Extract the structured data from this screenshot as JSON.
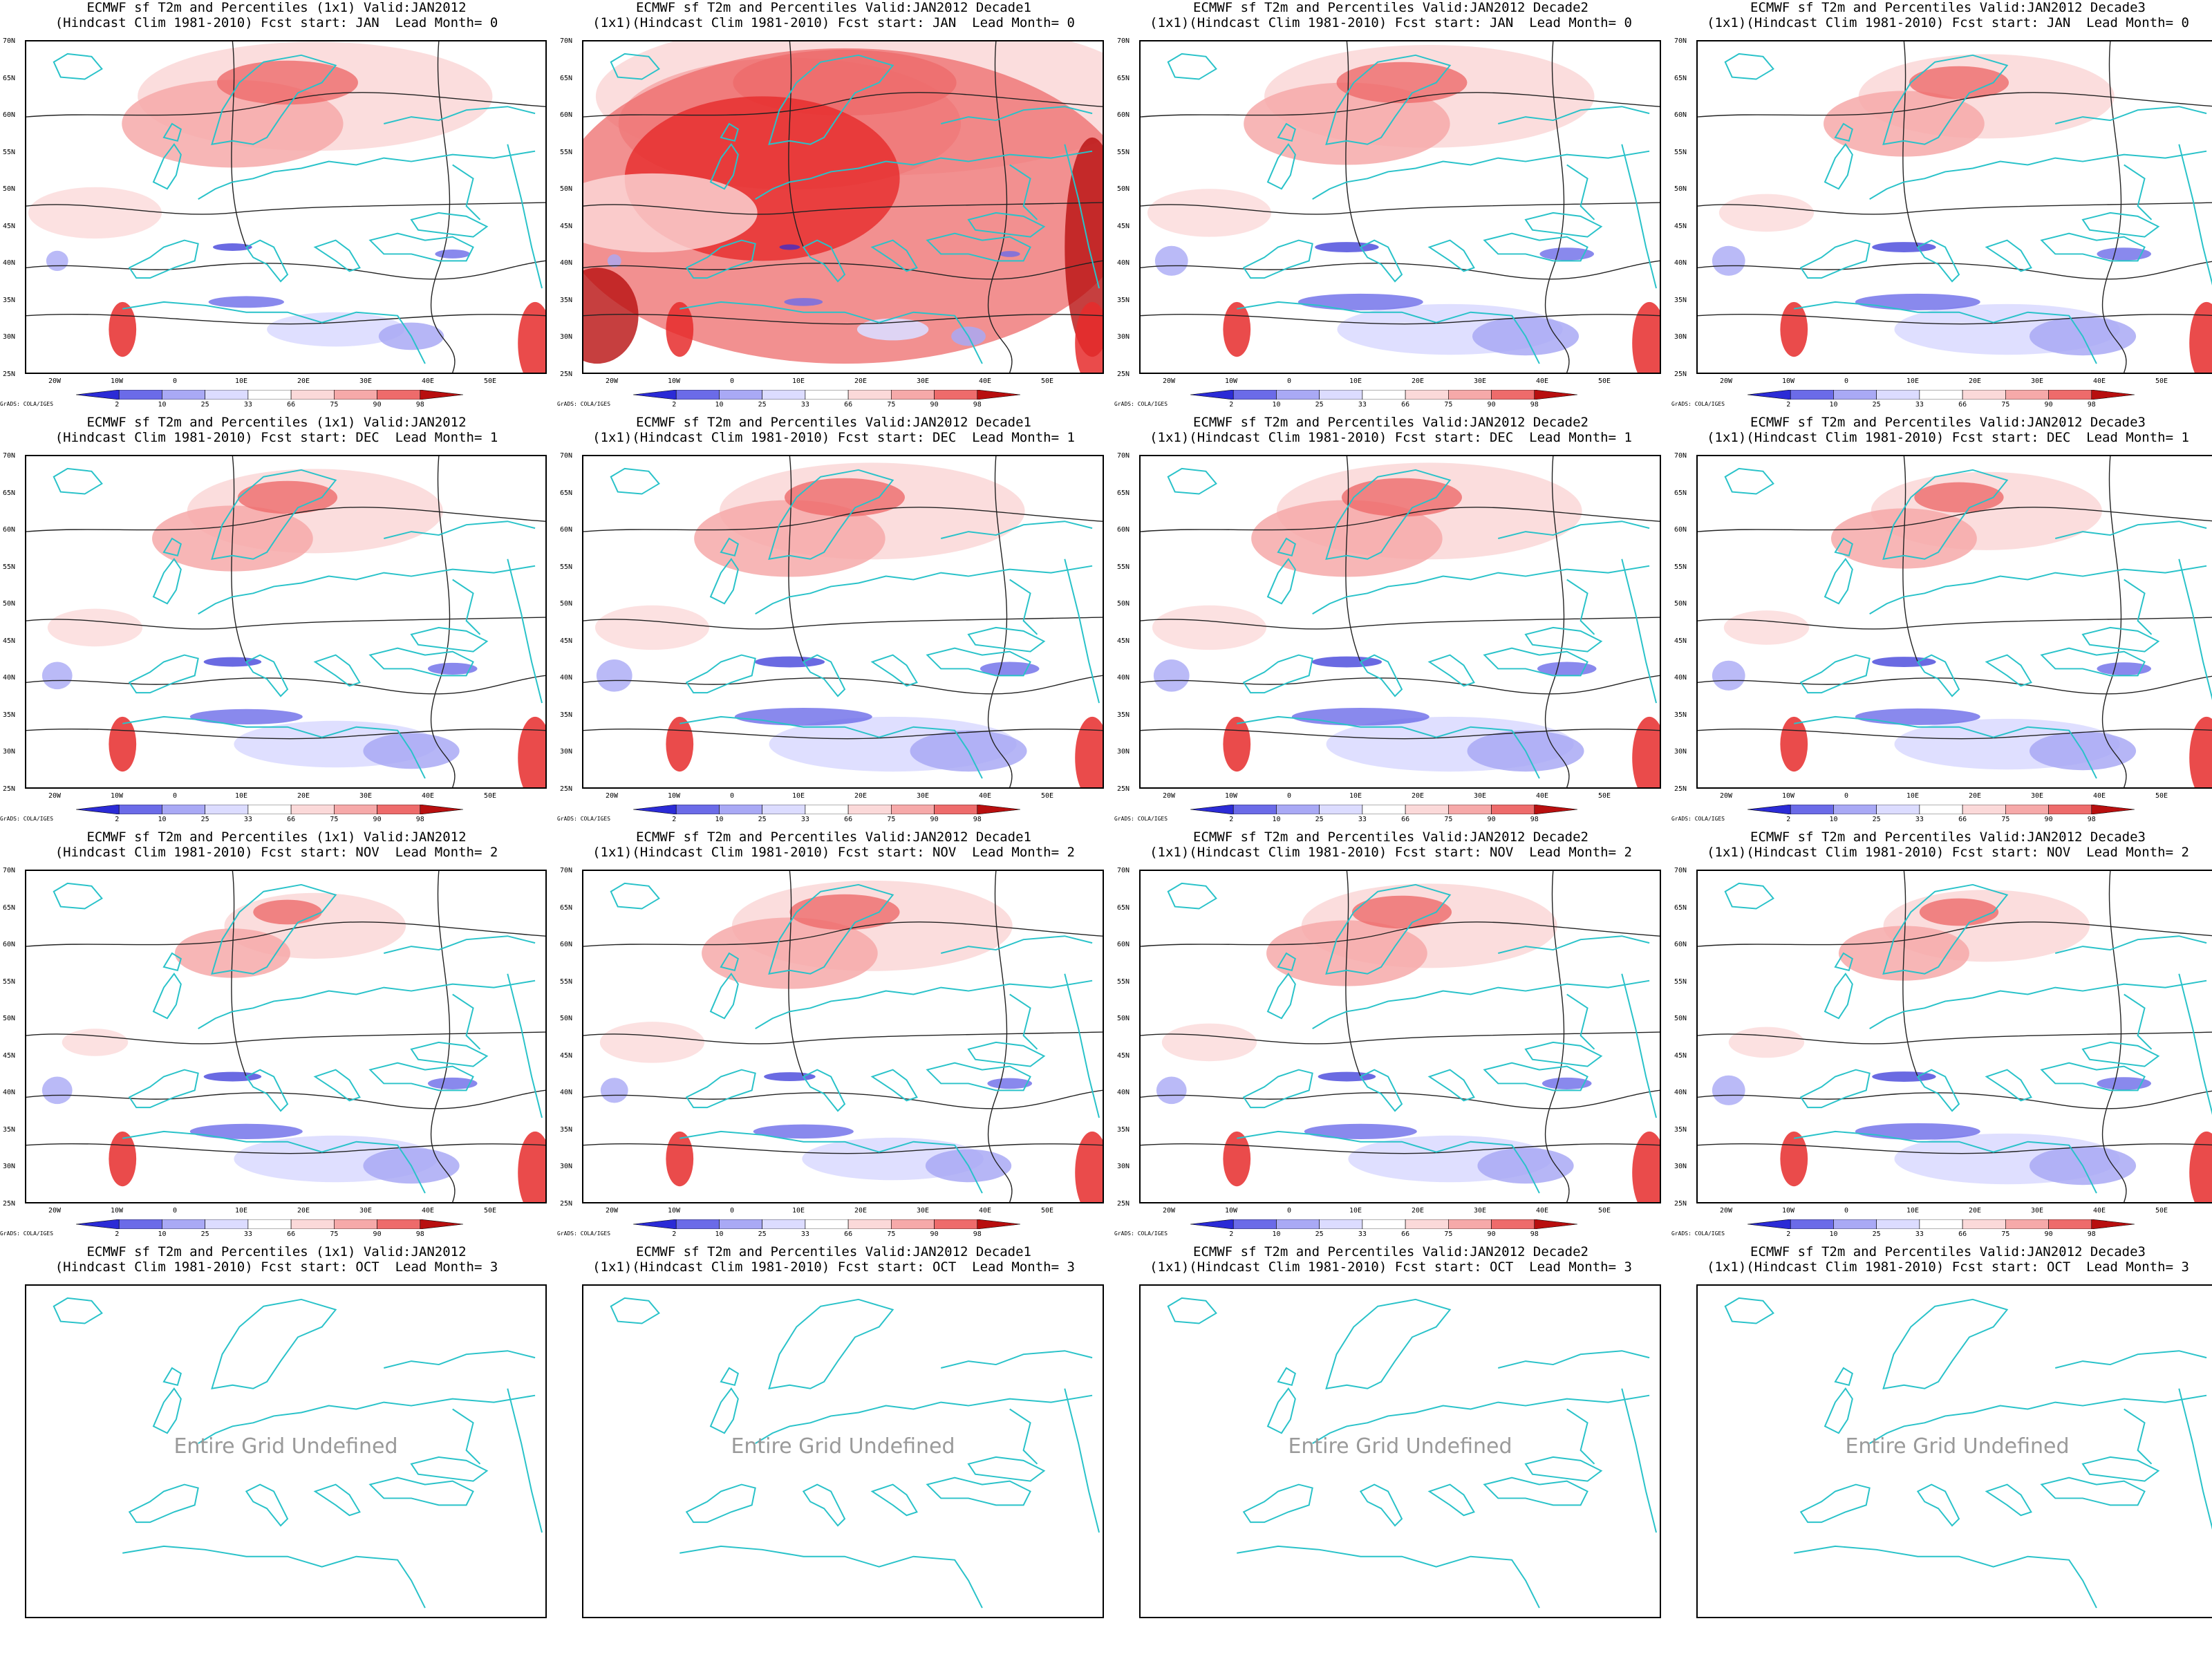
{
  "colors": {
    "coast": "#29c2c9",
    "contour": "#222222",
    "warm": [
      "#fbd9d9",
      "#f6a9a9",
      "#ee6b6b",
      "#e62b2b",
      "#b80f0f"
    ],
    "cold": [
      "#dcdcff",
      "#a9a9f5",
      "#6b6be8",
      "#2b2bd6"
    ]
  },
  "colorbar": {
    "labels": [
      "2",
      "10",
      "25",
      "33",
      "66",
      "75",
      "90",
      "98"
    ]
  },
  "lat_labels": [
    "70N",
    "65N",
    "60N",
    "55N",
    "50N",
    "45N",
    "40N",
    "35N",
    "30N",
    "25N"
  ],
  "lon_labels": [
    "20W",
    "10W",
    "0",
    "10E",
    "20E",
    "30E",
    "40E",
    "50E"
  ],
  "credit": "GrADS: COLA/IGES",
  "undefined_text": "Entire Grid Undefined",
  "panels": [
    {
      "title1": "ECMWF sf T2m and Percentiles (1x1) Valid:JAN2012",
      "title2": "(Hindcast Clim 1981-2010) Fcst start: JAN  Lead Month= 0",
      "warm": 0.55,
      "cold": 0.25,
      "defined": true
    },
    {
      "title1": "ECMWF sf T2m and Percentiles Valid:JAN2012 Decade1",
      "title2": "(1x1)(Hindcast Clim 1981-2010) Fcst start: JAN  Lead Month= 0",
      "warm": 0.95,
      "cold": 0.1,
      "defined": true
    },
    {
      "title1": "ECMWF sf T2m and Percentiles Valid:JAN2012 Decade2",
      "title2": "(1x1)(Hindcast Clim 1981-2010) Fcst start: JAN  Lead Month= 0",
      "warm": 0.5,
      "cold": 0.45,
      "defined": true
    },
    {
      "title1": "ECMWF sf T2m and Percentiles Valid:JAN2012 Decade3",
      "title2": "(1x1)(Hindcast Clim 1981-2010) Fcst start: JAN  Lead Month= 0",
      "warm": 0.35,
      "cold": 0.45,
      "defined": true
    },
    {
      "title1": "ECMWF sf T2m and Percentiles (1x1) Valid:JAN2012",
      "title2": "(Hindcast Clim 1981-2010) Fcst start: DEC  Lead Month= 1",
      "warm": 0.35,
      "cold": 0.4,
      "defined": true
    },
    {
      "title1": "ECMWF sf T2m and Percentiles Valid:JAN2012 Decade1",
      "title2": "(1x1)(Hindcast Clim 1981-2010) Fcst start: DEC  Lead Month= 1",
      "warm": 0.45,
      "cold": 0.5,
      "defined": true
    },
    {
      "title1": "ECMWF sf T2m and Percentiles Valid:JAN2012 Decade2",
      "title2": "(1x1)(Hindcast Clim 1981-2010) Fcst start: DEC  Lead Month= 1",
      "warm": 0.45,
      "cold": 0.5,
      "defined": true
    },
    {
      "title1": "ECMWF sf T2m and Percentiles Valid:JAN2012 Decade3",
      "title2": "(1x1)(Hindcast Clim 1981-2010) Fcst start: DEC  Lead Month= 1",
      "warm": 0.3,
      "cold": 0.45,
      "defined": true
    },
    {
      "title1": "ECMWF sf T2m and Percentiles (1x1) Valid:JAN2012",
      "title2": "(Hindcast Clim 1981-2010) Fcst start: NOV  Lead Month= 2",
      "warm": 0.2,
      "cold": 0.4,
      "defined": true
    },
    {
      "title1": "ECMWF sf T2m and Percentiles Valid:JAN2012 Decade1",
      "title2": "(1x1)(Hindcast Clim 1981-2010) Fcst start: NOV  Lead Month= 2",
      "warm": 0.4,
      "cold": 0.35,
      "defined": true
    },
    {
      "title1": "ECMWF sf T2m and Percentiles Valid:JAN2012 Decade2",
      "title2": "(1x1)(Hindcast Clim 1981-2010) Fcst start: NOV  Lead Month= 2",
      "warm": 0.35,
      "cold": 0.4,
      "defined": true
    },
    {
      "title1": "ECMWF sf T2m and Percentiles Valid:JAN2012 Decade3",
      "title2": "(1x1)(Hindcast Clim 1981-2010) Fcst start: NOV  Lead Month= 2",
      "warm": 0.25,
      "cold": 0.45,
      "defined": true
    },
    {
      "title1": "ECMWF sf T2m and Percentiles (1x1) Valid:JAN2012",
      "title2": "(Hindcast Clim 1981-2010) Fcst start: OCT  Lead Month= 3",
      "warm": 0,
      "cold": 0,
      "defined": false
    },
    {
      "title1": "ECMWF sf T2m and Percentiles Valid:JAN2012 Decade1",
      "title2": "(1x1)(Hindcast Clim 1981-2010) Fcst start: OCT  Lead Month= 3",
      "warm": 0,
      "cold": 0,
      "defined": false
    },
    {
      "title1": "ECMWF sf T2m and Percentiles Valid:JAN2012 Decade2",
      "title2": "(1x1)(Hindcast Clim 1981-2010) Fcst start: OCT  Lead Month= 3",
      "warm": 0,
      "cold": 0,
      "defined": false
    },
    {
      "title1": "ECMWF sf T2m and Percentiles Valid:JAN2012 Decade3",
      "title2": "(1x1)(Hindcast Clim 1981-2010) Fcst start: OCT  Lead Month= 3",
      "warm": 0,
      "cold": 0,
      "defined": false
    }
  ]
}
